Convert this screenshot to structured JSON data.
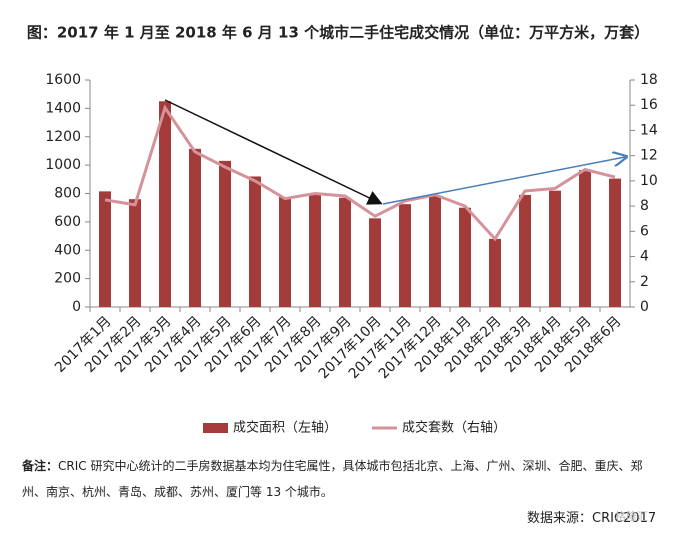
{
  "chart_data": {
    "type": "bar-line",
    "title": "图：2017 年 1 月至 2018 年 6 月 13 个城市二手住宅成交情况（单位：万平方米，万套）",
    "categories": [
      "2017年1月",
      "2017年2月",
      "2017年3月",
      "2017年4月",
      "2017年5月",
      "2017年6月",
      "2017年7月",
      "2017年8月",
      "2017年9月",
      "2017年10月",
      "2017年11月",
      "2017年12月",
      "2018年1月",
      "2018年2月",
      "2018年3月",
      "2018年4月",
      "2018年5月",
      "2018年6月"
    ],
    "series": [
      {
        "name": "成交面积（左轴）",
        "color": "#a33b3b",
        "type": "bar",
        "values": [
          815,
          760,
          1450,
          1115,
          1030,
          920,
          775,
          800,
          770,
          625,
          725,
          785,
          700,
          480,
          790,
          820,
          965,
          905
        ]
      },
      {
        "name": "成交套数（右轴）",
        "color": "#d4939a",
        "type": "line",
        "axis": "y2",
        "values": [
          8.5,
          8.1,
          15.8,
          12.3,
          11.1,
          10.0,
          8.6,
          9.0,
          8.8,
          7.2,
          8.4,
          8.9,
          8.0,
          5.4,
          9.2,
          9.4,
          10.9,
          10.3
        ]
      }
    ],
    "ylim": [
      0,
      1600
    ],
    "yticks": [
      0,
      200,
      400,
      600,
      800,
      1000,
      1200,
      1400,
      1600
    ],
    "y2lim": [
      0,
      18
    ],
    "y2ticks": [
      0,
      2,
      4,
      6,
      8,
      10,
      12,
      14,
      16,
      18
    ],
    "note_label": "备注：",
    "note": "CRIC 研究中心统计的二手房数据基本均为住宅属性，具体城市包括北京、上海、广州、深圳、合肥、重庆、郑州、南京、杭州、青岛、成都、苏州、厦门等 13 个城市。",
    "source": "数据来源：CRIC2017",
    "watermark": "格隆汇"
  }
}
